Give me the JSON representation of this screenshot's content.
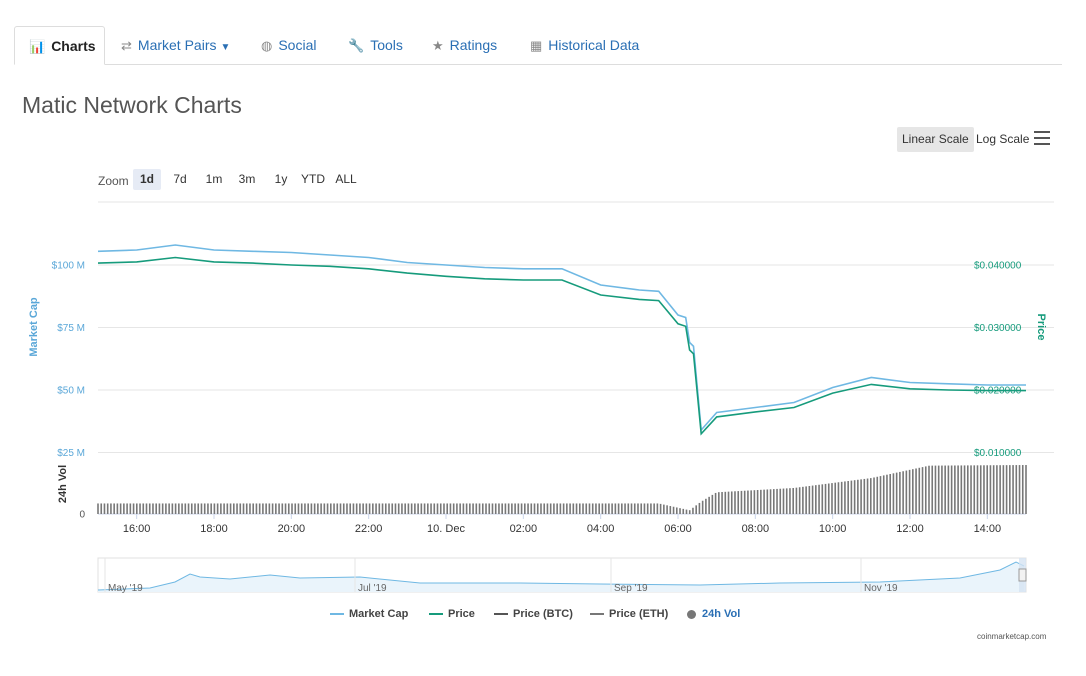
{
  "tabs": [
    {
      "label": "Charts",
      "icon": "bar-chart-icon",
      "glyph": "📊"
    },
    {
      "label": "Market Pairs",
      "icon": "arrows-icon",
      "glyph": "⇄"
    },
    {
      "label": "Social",
      "icon": "globe-icon",
      "glyph": "◍"
    },
    {
      "label": "Tools",
      "icon": "wrench-icon",
      "glyph": "🔧"
    },
    {
      "label": "Ratings",
      "icon": "star-icon",
      "glyph": "★"
    },
    {
      "label": "Historical Data",
      "icon": "calendar-icon",
      "glyph": "▦"
    }
  ],
  "title": "Matic Network Charts",
  "scale": {
    "linear": "Linear Scale",
    "log": "Log Scale"
  },
  "zoom": {
    "label": "Zoom",
    "options": [
      "1d",
      "7d",
      "1m",
      "3m",
      "1y",
      "YTD",
      "ALL"
    ],
    "selected": "1d"
  },
  "credit": "coinmarketcap.com",
  "colors": {
    "market_cap": "#6fb8e3",
    "price": "#169b7c",
    "btc": "#555555",
    "eth": "#777777",
    "volume": "#777777"
  },
  "chart_data": {
    "type": "line",
    "x_ticks": [
      "16:00",
      "18:00",
      "20:00",
      "22:00",
      "10. Dec",
      "02:00",
      "04:00",
      "06:00",
      "08:00",
      "10:00",
      "12:00",
      "14:00"
    ],
    "left_axis": {
      "label": "Market Cap",
      "ticks": [
        "$100 M",
        "$75 M",
        "$50 M",
        "$25 M"
      ],
      "values": [
        100,
        75,
        50,
        25
      ]
    },
    "right_axis": {
      "label": "Price",
      "ticks": [
        "$0.040000",
        "$0.030000",
        "$0.020000",
        "$0.010000"
      ],
      "values": [
        0.04,
        0.03,
        0.02,
        0.01
      ]
    },
    "volume_axis": {
      "label": "24h Vol",
      "ticks": [
        "0"
      ]
    },
    "series": [
      {
        "name": "Market Cap",
        "hours": [
          0,
          1,
          2,
          3,
          4,
          5,
          6,
          7,
          8,
          9,
          10,
          11,
          12,
          13,
          14,
          14.5,
          15,
          15.2,
          15.3,
          15.4,
          15.6,
          16,
          17,
          18,
          19,
          20,
          21,
          22,
          23,
          24
        ],
        "values": [
          105.5,
          106,
          108,
          106,
          105.5,
          105,
          104,
          103,
          101,
          100,
          99,
          98.5,
          98.5,
          92,
          90,
          89.5,
          80,
          79,
          69,
          67.5,
          34,
          41,
          43,
          45,
          51,
          55,
          53,
          52.5,
          52,
          52
        ]
      },
      {
        "name": "Price",
        "hours": [
          0,
          1,
          2,
          3,
          4,
          5,
          6,
          7,
          8,
          9,
          10,
          11,
          12,
          13,
          14,
          14.5,
          15,
          15.2,
          15.3,
          15.4,
          15.6,
          16,
          17,
          18,
          19,
          20,
          21,
          22,
          23,
          24
        ],
        "values": [
          0.0403,
          0.0405,
          0.0412,
          0.0405,
          0.0403,
          0.04,
          0.0398,
          0.0394,
          0.0387,
          0.0382,
          0.0378,
          0.0376,
          0.0376,
          0.0352,
          0.0345,
          0.0343,
          0.0306,
          0.0302,
          0.0264,
          0.0258,
          0.013,
          0.0157,
          0.0165,
          0.0172,
          0.0195,
          0.0209,
          0.0202,
          0.02,
          0.0199,
          0.0199
        ]
      }
    ],
    "volume": {
      "hours": [
        0,
        14.5,
        15.3,
        15.6,
        16,
        18,
        20,
        21.5,
        24
      ],
      "relative": [
        0.17,
        0.17,
        0.06,
        0.2,
        0.35,
        0.42,
        0.58,
        0.78,
        0.79
      ]
    },
    "navigator": {
      "ticks": [
        "May '19",
        "Jul '19",
        "Sep '19",
        "Nov '19"
      ]
    },
    "legend": [
      {
        "name": "Market Cap",
        "color": "#6fb8e3"
      },
      {
        "name": "Price",
        "color": "#169b7c"
      },
      {
        "name": "Price (BTC)",
        "color": "#555555"
      },
      {
        "name": "Price (ETH)",
        "color": "#777777"
      },
      {
        "name": "24h Vol",
        "color": "#777777"
      }
    ]
  }
}
